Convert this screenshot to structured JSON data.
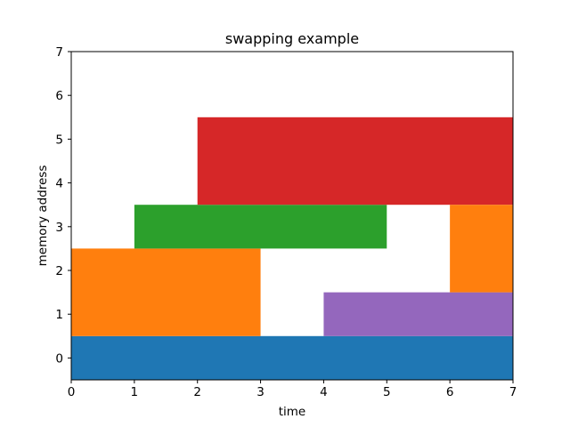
{
  "chart_data": {
    "type": "bar",
    "title": "swapping example",
    "xlabel": "time",
    "ylabel": "memory address",
    "xlim": [
      0,
      7
    ],
    "ylim": [
      -0.5,
      7
    ],
    "xticks": [
      "0",
      "1",
      "2",
      "3",
      "4",
      "5",
      "6",
      "7"
    ],
    "yticks": [
      "0",
      "1",
      "2",
      "3",
      "4",
      "5",
      "6",
      "7"
    ],
    "grid": false,
    "blocks": [
      {
        "x_start": 0,
        "x_end": 7,
        "y_start": -0.5,
        "y_end": 0.5,
        "color": "#1f77b4"
      },
      {
        "x_start": 0,
        "x_end": 3,
        "y_start": 0.5,
        "y_end": 2.5,
        "color": "#ff7f0e"
      },
      {
        "x_start": 1,
        "x_end": 5,
        "y_start": 2.5,
        "y_end": 3.5,
        "color": "#2ca02c"
      },
      {
        "x_start": 2,
        "x_end": 7,
        "y_start": 3.5,
        "y_end": 5.5,
        "color": "#d62728"
      },
      {
        "x_start": 4,
        "x_end": 7,
        "y_start": 0.5,
        "y_end": 1.5,
        "color": "#9467bd"
      },
      {
        "x_start": 6,
        "x_end": 7,
        "y_start": 1.5,
        "y_end": 3.5,
        "color": "#ff7f0e"
      }
    ]
  }
}
